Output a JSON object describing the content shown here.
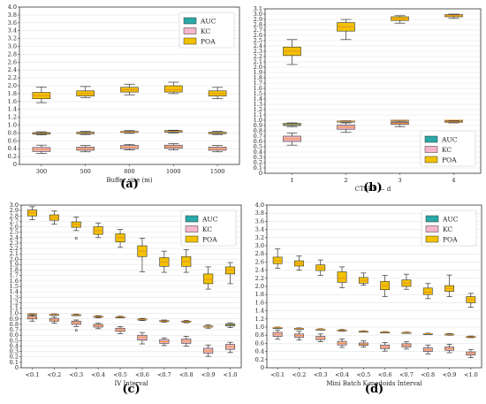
{
  "colors": {
    "AUC": "#2ba8a8",
    "KC": "#f4b6c8",
    "POA": "#f2c200",
    "median": "#e8902a"
  },
  "chart_data": [
    {
      "type": "boxplot",
      "panel_label": "(a)",
      "xlabel": "Buffer size  (m)",
      "categories": [
        "300",
        "500",
        "800",
        "1000",
        "1500"
      ],
      "ylim": [
        0,
        4.0
      ],
      "yticks": [
        "0",
        "0.2",
        "0.4",
        "0.6",
        "0.8",
        "1.0",
        "1.2",
        "1.4",
        "1.6",
        "1.8",
        "2.0",
        "2.2",
        "2.4",
        "2.6",
        "2.8",
        "3.0",
        "3.2",
        "3.4",
        "3.6",
        "3.8",
        "4.0"
      ],
      "ytick_values": [
        0,
        0.2,
        0.4,
        0.6,
        0.8,
        1.0,
        1.2,
        1.4,
        1.6,
        1.8,
        2.0,
        2.2,
        2.4,
        2.6,
        2.8,
        3.0,
        3.2,
        3.4,
        3.6,
        3.8,
        4.0
      ],
      "legend": {
        "position": "top-right",
        "entries": [
          "AUC",
          "KC",
          "POA"
        ]
      },
      "series": [
        {
          "name": "AUC",
          "boxes": [
            {
              "wl": 0.75,
              "q1": 0.77,
              "med": 0.79,
              "q3": 0.81,
              "wh": 0.83
            },
            {
              "wl": 0.76,
              "q1": 0.78,
              "med": 0.8,
              "q3": 0.82,
              "wh": 0.84
            },
            {
              "wl": 0.79,
              "q1": 0.81,
              "med": 0.82,
              "q3": 0.84,
              "wh": 0.86
            },
            {
              "wl": 0.8,
              "q1": 0.82,
              "med": 0.84,
              "q3": 0.86,
              "wh": 0.87
            },
            {
              "wl": 0.76,
              "q1": 0.78,
              "med": 0.8,
              "q3": 0.82,
              "wh": 0.84
            }
          ]
        },
        {
          "name": "KC",
          "boxes": [
            {
              "wl": 0.28,
              "q1": 0.33,
              "med": 0.38,
              "q3": 0.43,
              "wh": 0.49
            },
            {
              "wl": 0.32,
              "q1": 0.36,
              "med": 0.4,
              "q3": 0.44,
              "wh": 0.48
            },
            {
              "wl": 0.37,
              "q1": 0.4,
              "med": 0.44,
              "q3": 0.48,
              "wh": 0.51
            },
            {
              "wl": 0.37,
              "q1": 0.41,
              "med": 0.45,
              "q3": 0.49,
              "wh": 0.53
            },
            {
              "wl": 0.32,
              "q1": 0.36,
              "med": 0.4,
              "q3": 0.44,
              "wh": 0.48
            }
          ]
        },
        {
          "name": "POA",
          "boxes": [
            {
              "wl": 1.57,
              "q1": 1.67,
              "med": 1.75,
              "q3": 1.83,
              "wh": 1.97
            },
            {
              "wl": 1.7,
              "q1": 1.74,
              "med": 1.8,
              "q3": 1.87,
              "wh": 1.98
            },
            {
              "wl": 1.77,
              "q1": 1.84,
              "med": 1.9,
              "q3": 1.96,
              "wh": 2.04
            },
            {
              "wl": 1.8,
              "q1": 1.84,
              "med": 1.9,
              "q3": 2.0,
              "wh": 2.09
            },
            {
              "wl": 1.67,
              "q1": 1.74,
              "med": 1.8,
              "q3": 1.87,
              "wh": 1.96
            }
          ]
        }
      ]
    },
    {
      "type": "boxplot",
      "panel_label": "(b)",
      "xlabel": "CTSES — d",
      "categories": [
        "1",
        "2",
        "3",
        "4"
      ],
      "ylim": [
        0,
        3.1
      ],
      "yticks": [
        "0",
        "0.1",
        "0.2",
        "0.3",
        "0.4",
        "0.5",
        "0.6",
        "0.7",
        "0.8",
        "0.9",
        "1.0",
        "1.1",
        "1.2",
        "1.3",
        "1.4",
        "1.5",
        "1.6",
        "1.7",
        "1.8",
        "1.9",
        "2.0",
        "2.1",
        "2.2",
        "2.3",
        "2.4",
        "2.5",
        "2.6",
        "2.7",
        "2.8",
        "2.9",
        "3.0",
        "3.1"
      ],
      "ytick_values": [
        0,
        0.1,
        0.2,
        0.3,
        0.4,
        0.5,
        0.6,
        0.7,
        0.8,
        0.9,
        1.0,
        1.1,
        1.2,
        1.3,
        1.4,
        1.5,
        1.6,
        1.7,
        1.8,
        1.9,
        2.0,
        2.1,
        2.2,
        2.3,
        2.4,
        2.5,
        2.6,
        2.7,
        2.8,
        2.9,
        3.0,
        3.1
      ],
      "legend": {
        "position": "bottom-right",
        "entries": [
          "AUC",
          "KC",
          "POA"
        ]
      },
      "series": [
        {
          "name": "AUC",
          "boxes": [
            {
              "wl": 0.88,
              "q1": 0.9,
              "med": 0.92,
              "q3": 0.94,
              "wh": 0.95
            },
            {
              "wl": 0.97,
              "q1": 0.975,
              "med": 0.98,
              "q3": 0.985,
              "wh": 0.99
            },
            {
              "wl": 0.99,
              "q1": 0.99,
              "med": 0.995,
              "q3": 1.0,
              "wh": 1.0
            },
            {
              "wl": 0.99,
              "q1": 0.995,
              "med": 1.0,
              "q3": 1.0,
              "wh": 1.0
            }
          ]
        },
        {
          "name": "KC",
          "boxes": [
            {
              "wl": 0.53,
              "q1": 0.6,
              "med": 0.65,
              "q3": 0.7,
              "wh": 0.76
            },
            {
              "wl": 0.77,
              "q1": 0.83,
              "med": 0.87,
              "q3": 0.91,
              "wh": 0.95
            },
            {
              "wl": 0.88,
              "q1": 0.92,
              "med": 0.94,
              "q3": 0.96,
              "wh": 0.98
            },
            {
              "wl": 0.95,
              "q1": 0.96,
              "med": 0.97,
              "q3": 0.98,
              "wh": 0.99
            }
          ]
        },
        {
          "name": "POA",
          "boxes": [
            {
              "wl": 2.05,
              "q1": 2.22,
              "med": 2.3,
              "q3": 2.38,
              "wh": 2.52
            },
            {
              "wl": 2.52,
              "q1": 2.68,
              "med": 2.76,
              "q3": 2.84,
              "wh": 2.9
            },
            {
              "wl": 2.83,
              "q1": 2.88,
              "med": 2.91,
              "q3": 2.95,
              "wh": 2.97
            },
            {
              "wl": 2.92,
              "q1": 2.95,
              "med": 2.97,
              "q3": 2.99,
              "wh": 3.0
            }
          ]
        }
      ]
    },
    {
      "type": "boxplot",
      "panel_label": "(c)",
      "xlabel": "IV Interval",
      "categories": [
        "<0.1",
        "<0.2",
        "<0.3",
        "<0.4",
        "<0.5",
        "<0.6",
        "<0.7",
        "<0.8",
        "<0.9",
        "<1.0"
      ],
      "ylim": [
        0,
        3.0
      ],
      "yticks": [
        "0",
        "0.1",
        "0.2",
        "0.3",
        "0.4",
        "0.5",
        "0.6",
        "0.7",
        "0.8",
        "0.9",
        "1.0",
        "1.1",
        "1.2",
        "1.3",
        "1.4",
        "1.5",
        "1.6",
        "1.7",
        "1.8",
        "1.9",
        "2.0",
        "2.1",
        "2.2",
        "2.3",
        "2.4",
        "2.5",
        "2.6",
        "2.7",
        "2.8",
        "2.9",
        "3.0"
      ],
      "ytick_values": [
        0,
        0.1,
        0.2,
        0.3,
        0.4,
        0.5,
        0.6,
        0.7,
        0.8,
        0.9,
        1.0,
        1.1,
        1.2,
        1.3,
        1.4,
        1.5,
        1.6,
        1.7,
        1.8,
        1.9,
        2.0,
        2.1,
        2.2,
        2.3,
        2.4,
        2.5,
        2.6,
        2.7,
        2.8,
        2.9,
        3.0
      ],
      "legend": {
        "position": "top-right",
        "entries": [
          "AUC",
          "KC",
          "POA"
        ]
      },
      "series": [
        {
          "name": "AUC",
          "boxes": [
            {
              "wl": 0.98,
              "q1": 0.985,
              "med": 0.99,
              "q3": 0.995,
              "wh": 1.0
            },
            {
              "wl": 0.97,
              "q1": 0.98,
              "med": 0.985,
              "q3": 0.99,
              "wh": 0.995
            },
            {
              "wl": 0.96,
              "q1": 0.97,
              "med": 0.975,
              "q3": 0.98,
              "wh": 0.99
            },
            {
              "wl": 0.92,
              "q1": 0.93,
              "med": 0.94,
              "q3": 0.95,
              "wh": 0.96
            },
            {
              "wl": 0.92,
              "q1": 0.93,
              "med": 0.935,
              "q3": 0.94,
              "wh": 0.95
            },
            {
              "wl": 0.87,
              "q1": 0.88,
              "med": 0.89,
              "q3": 0.9,
              "wh": 0.91
            },
            {
              "wl": 0.84,
              "q1": 0.85,
              "med": 0.86,
              "q3": 0.87,
              "wh": 0.88
            },
            {
              "wl": 0.83,
              "q1": 0.84,
              "med": 0.85,
              "q3": 0.86,
              "wh": 0.87
            },
            {
              "wl": 0.73,
              "q1": 0.75,
              "med": 0.76,
              "q3": 0.77,
              "wh": 0.79
            },
            {
              "wl": 0.74,
              "q1": 0.77,
              "med": 0.79,
              "q3": 0.81,
              "wh": 0.83
            }
          ]
        },
        {
          "name": "KC",
          "boxes": [
            {
              "wl": 0.86,
              "q1": 0.9,
              "med": 0.93,
              "q3": 0.95,
              "wh": 0.97
            },
            {
              "wl": 0.82,
              "q1": 0.86,
              "med": 0.88,
              "q3": 0.91,
              "wh": 0.94
            },
            {
              "wl": 0.76,
              "q1": 0.8,
              "med": 0.83,
              "q3": 0.86,
              "wh": 0.88,
              "outliers": [
                0.69
              ]
            },
            {
              "wl": 0.72,
              "q1": 0.75,
              "med": 0.78,
              "q3": 0.8,
              "wh": 0.82
            },
            {
              "wl": 0.63,
              "q1": 0.67,
              "med": 0.7,
              "q3": 0.73,
              "wh": 0.76
            },
            {
              "wl": 0.44,
              "q1": 0.51,
              "med": 0.56,
              "q3": 0.6,
              "wh": 0.65
            },
            {
              "wl": 0.41,
              "q1": 0.45,
              "med": 0.48,
              "q3": 0.52,
              "wh": 0.55
            },
            {
              "wl": 0.4,
              "q1": 0.45,
              "med": 0.49,
              "q3": 0.53,
              "wh": 0.58
            },
            {
              "wl": 0.21,
              "q1": 0.27,
              "med": 0.31,
              "q3": 0.36,
              "wh": 0.42
            },
            {
              "wl": 0.28,
              "q1": 0.34,
              "med": 0.39,
              "q3": 0.43,
              "wh": 0.47
            }
          ]
        },
        {
          "name": "POA",
          "boxes": [
            {
              "wl": 2.73,
              "q1": 2.8,
              "med": 2.86,
              "q3": 2.91,
              "wh": 2.97
            },
            {
              "wl": 2.65,
              "q1": 2.72,
              "med": 2.77,
              "q3": 2.82,
              "wh": 2.89
            },
            {
              "wl": 2.53,
              "q1": 2.59,
              "med": 2.64,
              "q3": 2.69,
              "wh": 2.78,
              "outliers": [
                2.39
              ]
            },
            {
              "wl": 2.4,
              "q1": 2.46,
              "med": 2.53,
              "q3": 2.6,
              "wh": 2.67
            },
            {
              "wl": 2.22,
              "q1": 2.32,
              "med": 2.4,
              "q3": 2.47,
              "wh": 2.55
            },
            {
              "wl": 1.77,
              "q1": 2.05,
              "med": 2.15,
              "q3": 2.25,
              "wh": 2.39
            },
            {
              "wl": 1.76,
              "q1": 1.87,
              "med": 1.95,
              "q3": 2.03,
              "wh": 2.15
            },
            {
              "wl": 1.76,
              "q1": 1.87,
              "med": 1.96,
              "q3": 2.05,
              "wh": 2.18
            },
            {
              "wl": 1.45,
              "q1": 1.55,
              "med": 1.63,
              "q3": 1.73,
              "wh": 1.86
            },
            {
              "wl": 1.55,
              "q1": 1.73,
              "med": 1.8,
              "q3": 1.86,
              "wh": 1.94
            }
          ]
        }
      ]
    },
    {
      "type": "boxplot",
      "panel_label": "(d)",
      "xlabel": "Mini Batch K-medoids Interval",
      "categories": [
        "<0.1",
        "<0.2",
        "<0.3",
        "<0.4",
        "<0.5",
        "<0.6",
        "<0.7",
        "<0.8",
        "<0.9",
        "<1.0"
      ],
      "ylim": [
        0,
        4.0
      ],
      "yticks": [
        "0",
        "0.2",
        "0.4",
        "0.6",
        "0.8",
        "1.0",
        "1.2",
        "1.4",
        "1.6",
        "1.8",
        "2.0",
        "2.2",
        "2.4",
        "2.6",
        "2.8",
        "3.0",
        "3.2",
        "3.4",
        "3.6",
        "3.8",
        "4.0"
      ],
      "ytick_values": [
        0,
        0.2,
        0.4,
        0.6,
        0.8,
        1.0,
        1.2,
        1.4,
        1.6,
        1.8,
        2.0,
        2.2,
        2.4,
        2.6,
        2.8,
        3.0,
        3.2,
        3.4,
        3.6,
        3.8,
        4.0
      ],
      "legend": {
        "position": "top-right",
        "entries": [
          "AUC",
          "KC",
          "POA"
        ]
      },
      "series": [
        {
          "name": "AUC",
          "boxes": [
            {
              "wl": 0.97,
              "q1": 0.98,
              "med": 0.985,
              "q3": 0.99,
              "wh": 1.0
            },
            {
              "wl": 0.95,
              "q1": 0.96,
              "med": 0.965,
              "q3": 0.97,
              "wh": 0.98
            },
            {
              "wl": 0.93,
              "q1": 0.94,
              "med": 0.945,
              "q3": 0.95,
              "wh": 0.96
            },
            {
              "wl": 0.9,
              "q1": 0.91,
              "med": 0.92,
              "q3": 0.93,
              "wh": 0.94
            },
            {
              "wl": 0.88,
              "q1": 0.89,
              "med": 0.895,
              "q3": 0.9,
              "wh": 0.91
            },
            {
              "wl": 0.86,
              "q1": 0.87,
              "med": 0.875,
              "q3": 0.88,
              "wh": 0.89
            },
            {
              "wl": 0.85,
              "q1": 0.86,
              "med": 0.865,
              "q3": 0.87,
              "wh": 0.88
            },
            {
              "wl": 0.82,
              "q1": 0.83,
              "med": 0.835,
              "q3": 0.84,
              "wh": 0.85
            },
            {
              "wl": 0.8,
              "q1": 0.81,
              "med": 0.82,
              "q3": 0.83,
              "wh": 0.84
            },
            {
              "wl": 0.74,
              "q1": 0.75,
              "med": 0.76,
              "q3": 0.77,
              "wh": 0.78
            }
          ]
        },
        {
          "name": "KC",
          "boxes": [
            {
              "wl": 0.7,
              "q1": 0.77,
              "med": 0.82,
              "q3": 0.87,
              "wh": 0.93
            },
            {
              "wl": 0.68,
              "q1": 0.75,
              "med": 0.79,
              "q3": 0.83,
              "wh": 0.9
            },
            {
              "wl": 0.64,
              "q1": 0.69,
              "med": 0.73,
              "q3": 0.77,
              "wh": 0.83
            },
            {
              "wl": 0.5,
              "q1": 0.56,
              "med": 0.6,
              "q3": 0.65,
              "wh": 0.71
            },
            {
              "wl": 0.51,
              "q1": 0.55,
              "med": 0.58,
              "q3": 0.61,
              "wh": 0.66
            },
            {
              "wl": 0.41,
              "q1": 0.47,
              "med": 0.51,
              "q3": 0.56,
              "wh": 0.62
            },
            {
              "wl": 0.46,
              "q1": 0.51,
              "med": 0.55,
              "q3": 0.59,
              "wh": 0.64
            },
            {
              "wl": 0.34,
              "q1": 0.4,
              "med": 0.44,
              "q3": 0.49,
              "wh": 0.56
            },
            {
              "wl": 0.37,
              "q1": 0.43,
              "med": 0.47,
              "q3": 0.51,
              "wh": 0.58
            },
            {
              "wl": 0.25,
              "q1": 0.31,
              "med": 0.35,
              "q3": 0.39,
              "wh": 0.45
            }
          ]
        },
        {
          "name": "POA",
          "boxes": [
            {
              "wl": 2.45,
              "q1": 2.56,
              "med": 2.63,
              "q3": 2.72,
              "wh": 2.92
            },
            {
              "wl": 2.4,
              "q1": 2.5,
              "med": 2.56,
              "q3": 2.63,
              "wh": 2.75
            },
            {
              "wl": 2.27,
              "q1": 2.39,
              "med": 2.46,
              "q3": 2.53,
              "wh": 2.65
            },
            {
              "wl": 1.97,
              "q1": 2.1,
              "med": 2.2,
              "q3": 2.36,
              "wh": 2.48
            },
            {
              "wl": 2.03,
              "q1": 2.08,
              "med": 2.15,
              "q3": 2.22,
              "wh": 2.33
            },
            {
              "wl": 1.75,
              "q1": 1.92,
              "med": 2.02,
              "q3": 2.12,
              "wh": 2.27
            },
            {
              "wl": 1.93,
              "q1": 2.0,
              "med": 2.08,
              "q3": 2.16,
              "wh": 2.3
            },
            {
              "wl": 1.7,
              "q1": 1.8,
              "med": 1.86,
              "q3": 1.96,
              "wh": 2.07
            },
            {
              "wl": 1.75,
              "q1": 1.88,
              "med": 1.95,
              "q3": 2.02,
              "wh": 2.28
            },
            {
              "wl": 1.49,
              "q1": 1.6,
              "med": 1.67,
              "q3": 1.75,
              "wh": 1.83
            }
          ]
        }
      ]
    }
  ]
}
